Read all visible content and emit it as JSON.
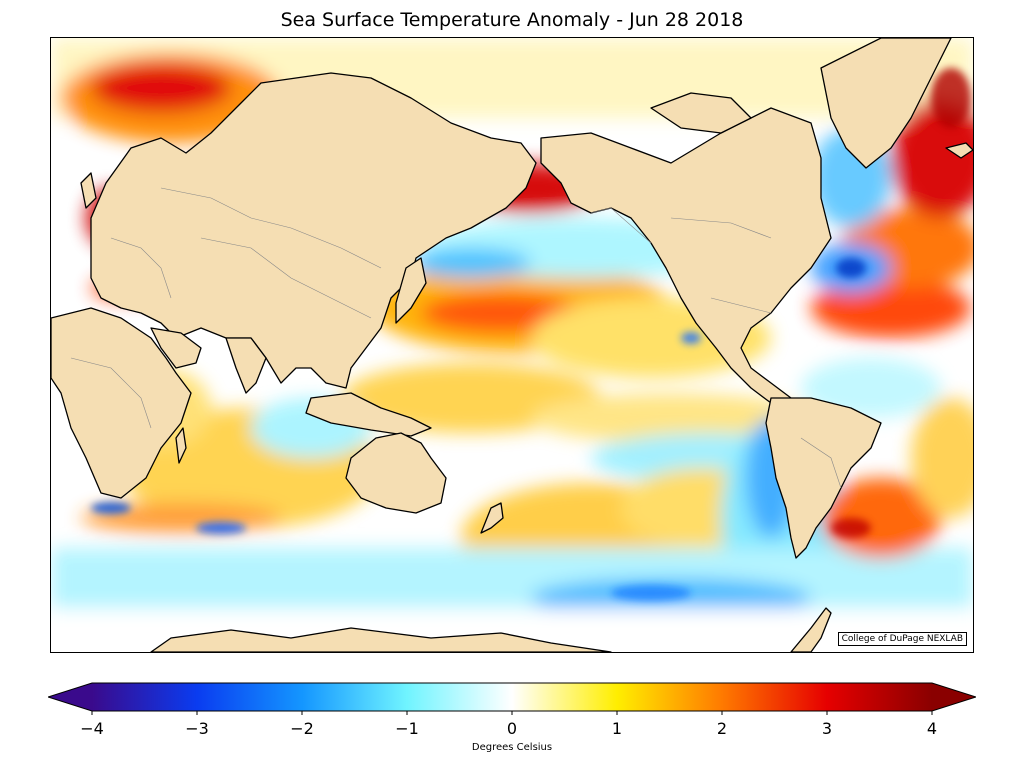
{
  "title": "Sea Surface Temperature Anomaly - Jun 28 2018",
  "credit": "College of DuPage NEXLAB",
  "colorbar": {
    "label": "Degrees Celsius",
    "min": -4,
    "max": 4,
    "ticks": [
      "−4",
      "−3",
      "−2",
      "−1",
      "0",
      "1",
      "2",
      "3",
      "4"
    ],
    "tick_values": [
      -4,
      -3,
      -2,
      -1,
      0,
      1,
      2,
      3,
      4
    ],
    "stops": [
      {
        "value": -4,
        "color": "#3a0a8c"
      },
      {
        "value": -3,
        "color": "#0a3cf0"
      },
      {
        "value": -2,
        "color": "#1496ff"
      },
      {
        "value": -1,
        "color": "#70f4ff"
      },
      {
        "value": 0,
        "color": "#ffffff"
      },
      {
        "value": 1,
        "color": "#ffee00"
      },
      {
        "value": 2,
        "color": "#ff7a00"
      },
      {
        "value": 3,
        "color": "#e60000"
      },
      {
        "value": 4,
        "color": "#8a0000"
      }
    ]
  },
  "colors": {
    "land": "#f5deb3",
    "coast": "#000000",
    "border": "#888888"
  }
}
